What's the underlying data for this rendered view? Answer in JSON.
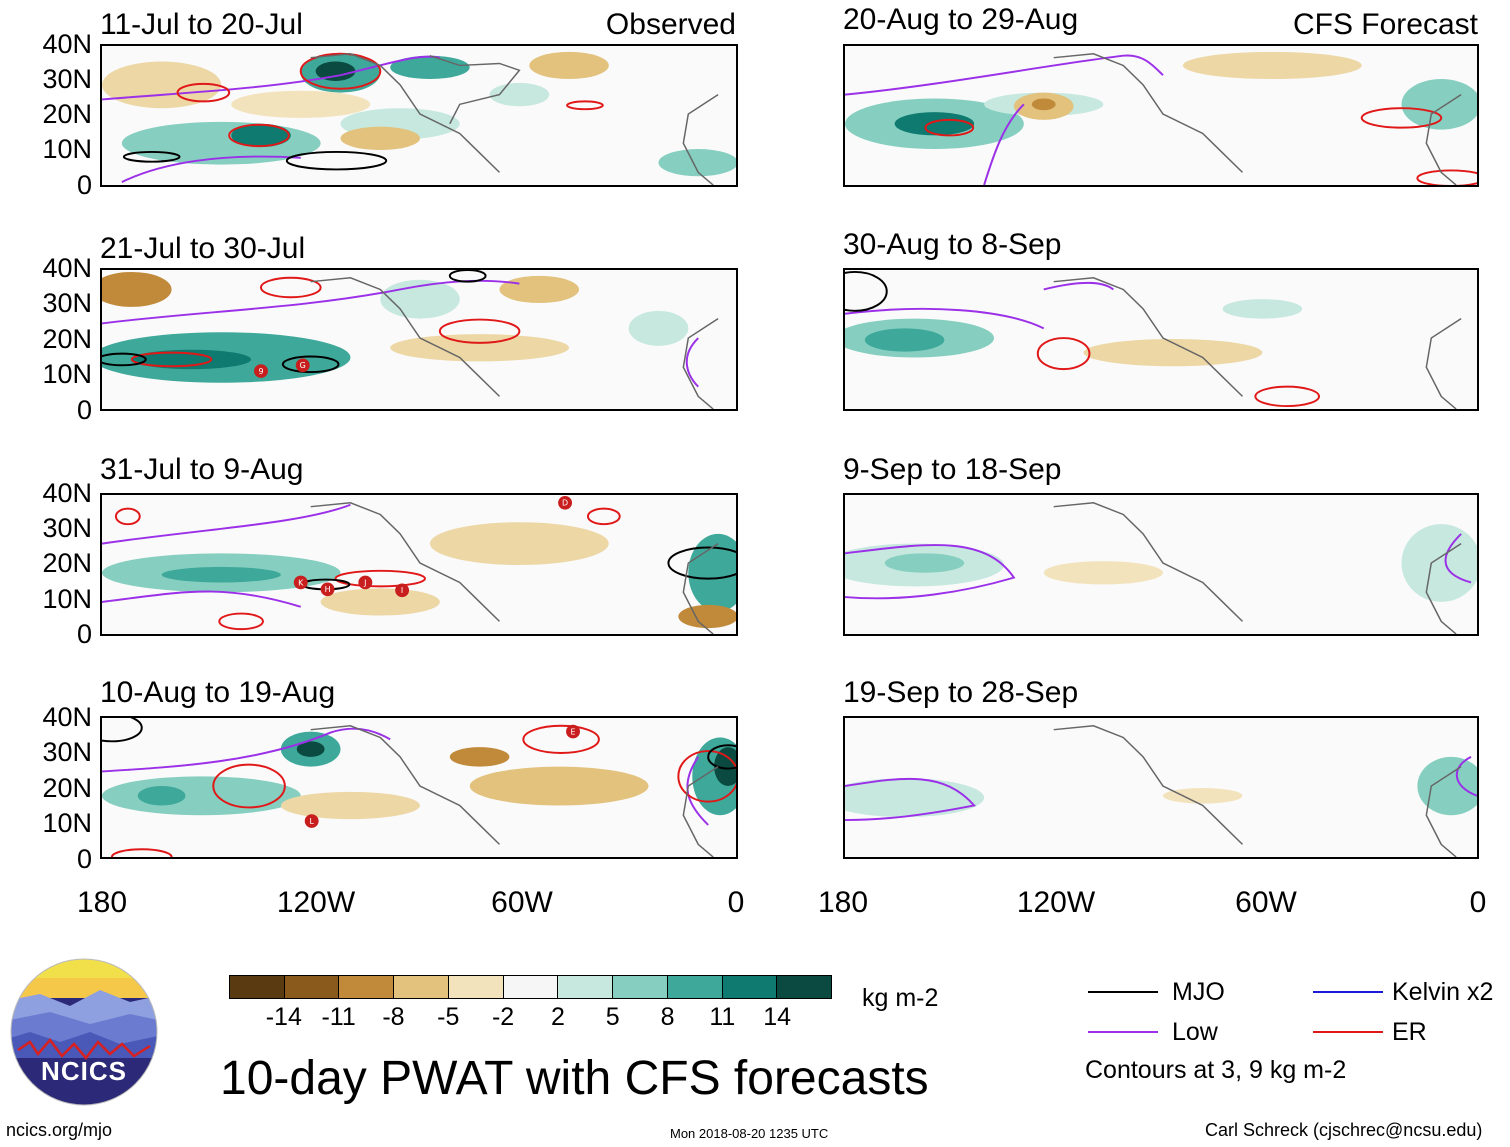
{
  "panels_left": {
    "header_right": "Observed",
    "titles": [
      "11-Jul to 20-Jul",
      "21-Jul to 30-Jul",
      "31-Jul to 9-Aug",
      "10-Aug to 19-Aug"
    ]
  },
  "panels_right": {
    "header_right": "CFS Forecast",
    "titles": [
      "20-Aug to 29-Aug",
      "30-Aug to 8-Sep",
      "9-Sep to 18-Sep",
      "19-Sep to 28-Sep"
    ]
  },
  "lat_labels": [
    "40N",
    "30N",
    "20N",
    "10N",
    "0"
  ],
  "lon_labels": [
    "180",
    "120W",
    "60W",
    "0"
  ],
  "storms": {
    "p2": [
      "9",
      "G"
    ],
    "p3": [
      "D",
      "K",
      "H",
      "J",
      "I"
    ],
    "p4": [
      "E",
      "L"
    ]
  },
  "colorbar": {
    "unit": "kg m-2",
    "colors": [
      "#5a3a10",
      "#8a5a1c",
      "#c08a3a",
      "#e2c27c",
      "#f3e3bd",
      "#f6f6f6",
      "#c6e8df",
      "#86cfc0",
      "#3ea89a",
      "#0e7a70",
      "#0a4a40"
    ],
    "labels": [
      "-14",
      "-11",
      "-8",
      "-5",
      "-2",
      "2",
      "5",
      "8",
      "11",
      "14"
    ]
  },
  "colors": {
    "mjo": "#000000",
    "kelvin": "#1a1adc",
    "low": "#9b30e8",
    "er": "#e01818",
    "land_outline": "#666666"
  },
  "title": "10-day PWAT with CFS forecasts",
  "logo": {
    "text": "NCICS"
  },
  "legend": {
    "mjo": "MJO",
    "kelvin": "Kelvin x2",
    "low": "Low",
    "er": "ER",
    "contours": "Contours at 3, 9 kg m-2"
  },
  "footer": {
    "url": "ncics.org/mjo",
    "timestamp": "Mon 2018-08-20 1235 UTC",
    "author": "Carl Schreck (cjschrec@ncsu.edu)"
  }
}
